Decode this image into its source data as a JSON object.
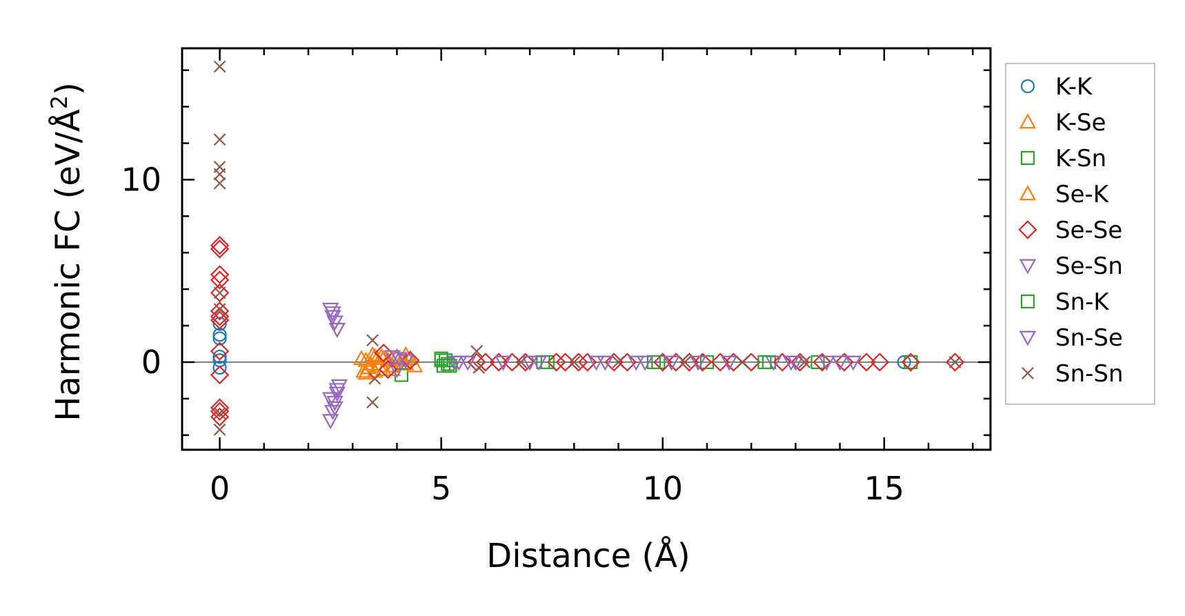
{
  "chart_data": {
    "type": "scatter",
    "title": "",
    "xlabel": "Distance (Å)",
    "ylabel_main": "Harmonic FC (eV/Å",
    "ylabel_sup": "2",
    "ylabel_close": ")",
    "xlim": [
      -0.85,
      17.4
    ],
    "ylim": [
      -4.8,
      17.2
    ],
    "xticks": [
      0,
      5,
      10,
      15
    ],
    "xtick_labels": [
      "0",
      "5",
      "10",
      "15"
    ],
    "yticks": [
      0,
      10
    ],
    "ytick_labels": [
      "0",
      "10"
    ],
    "x_minor_step": 1,
    "y_minor_step": 2,
    "zero_line": true,
    "grid": false,
    "legend_position": "outside-right",
    "series": [
      {
        "name": "K-K",
        "marker": "circle",
        "color": "#1f77b4",
        "points": [
          [
            0,
            2.1
          ],
          [
            0,
            1.5
          ],
          [
            0,
            1.3
          ],
          [
            0,
            0.3
          ],
          [
            0,
            0.1
          ],
          [
            0,
            -0.3
          ],
          [
            15.45,
            0
          ]
        ]
      },
      {
        "name": "K-Se",
        "marker": "triangle-up",
        "color": "#ff7f0e",
        "points": [
          [
            3.2,
            0.2
          ],
          [
            3.25,
            -0.5
          ],
          [
            3.3,
            0.1
          ],
          [
            3.35,
            -0.3
          ],
          [
            3.4,
            -0.1
          ],
          [
            3.45,
            0.4
          ],
          [
            3.5,
            -0.5
          ],
          [
            3.55,
            0.2
          ],
          [
            3.6,
            -0.2
          ],
          [
            3.65,
            0.3
          ],
          [
            3.7,
            -0.4
          ],
          [
            3.8,
            0.1
          ],
          [
            3.9,
            -0.2
          ],
          [
            4.0,
            0.3
          ],
          [
            4.1,
            0.1
          ],
          [
            4.2,
            -0.1
          ],
          [
            4.3,
            0.2
          ]
        ]
      },
      {
        "name": "K-Sn",
        "marker": "square",
        "color": "#2ca02c",
        "points": [
          [
            4.1,
            -0.7
          ],
          [
            5.0,
            0.2
          ],
          [
            5.05,
            -0.2
          ],
          [
            5.1,
            0.1
          ],
          [
            5.15,
            -0.1
          ],
          [
            7.4,
            0
          ],
          [
            9.9,
            0
          ],
          [
            11.0,
            0
          ],
          [
            12.4,
            0
          ],
          [
            13.5,
            0
          ],
          [
            15.6,
            0
          ]
        ]
      },
      {
        "name": "Se-K",
        "marker": "triangle-up",
        "color": "#ff7f0e",
        "points": [
          [
            3.3,
            -0.6
          ],
          [
            3.5,
            0.3
          ],
          [
            3.7,
            0.2
          ],
          [
            3.9,
            -0.4
          ],
          [
            4.2,
            0.4
          ],
          [
            4.4,
            -0.2
          ]
        ]
      },
      {
        "name": "Se-Se",
        "marker": "diamond",
        "color": "#d62728",
        "points": [
          [
            0,
            6.4
          ],
          [
            0,
            6.2
          ],
          [
            0,
            4.8
          ],
          [
            0,
            4.5
          ],
          [
            0,
            3.8
          ],
          [
            0,
            2.8
          ],
          [
            0,
            2.5
          ],
          [
            0,
            2.3
          ],
          [
            0,
            0.6
          ],
          [
            0,
            -0.7
          ],
          [
            0,
            -2.5
          ],
          [
            0,
            -2.7
          ],
          [
            0,
            -3.0
          ],
          [
            3.7,
            0.5
          ],
          [
            3.8,
            -0.4
          ],
          [
            4.3,
            0.1
          ],
          [
            5.8,
            0
          ],
          [
            6.0,
            0
          ],
          [
            6.3,
            0
          ],
          [
            6.6,
            0
          ],
          [
            6.9,
            0
          ],
          [
            7.6,
            0
          ],
          [
            7.8,
            0
          ],
          [
            8.1,
            0
          ],
          [
            8.3,
            0
          ],
          [
            8.9,
            0
          ],
          [
            9.2,
            0
          ],
          [
            10.0,
            0
          ],
          [
            10.3,
            0
          ],
          [
            10.6,
            0
          ],
          [
            10.9,
            0
          ],
          [
            11.3,
            0
          ],
          [
            11.6,
            0
          ],
          [
            12.0,
            0
          ],
          [
            12.7,
            0
          ],
          [
            13.1,
            0
          ],
          [
            13.6,
            0
          ],
          [
            14.1,
            0
          ],
          [
            14.6,
            0
          ],
          [
            14.9,
            0
          ],
          [
            15.6,
            0
          ],
          [
            16.6,
            0
          ]
        ]
      },
      {
        "name": "Se-Sn",
        "marker": "triangle-down",
        "color": "#9467bd",
        "points": [
          [
            2.5,
            2.9
          ],
          [
            2.55,
            2.5
          ],
          [
            2.6,
            2.2
          ],
          [
            2.65,
            1.8
          ],
          [
            2.5,
            -3.2
          ],
          [
            2.55,
            -2.7
          ],
          [
            2.6,
            -2.2
          ],
          [
            2.65,
            -1.7
          ],
          [
            2.7,
            -1.3
          ],
          [
            3.9,
            0.3
          ],
          [
            4.0,
            -0.4
          ],
          [
            4.2,
            0.1
          ],
          [
            5.3,
            0
          ],
          [
            5.6,
            0
          ],
          [
            6.4,
            0
          ],
          [
            7.0,
            0
          ],
          [
            8.7,
            0
          ],
          [
            9.4,
            0
          ],
          [
            10.2,
            0
          ],
          [
            10.8,
            0
          ],
          [
            11.5,
            0
          ],
          [
            12.5,
            0
          ],
          [
            13.0,
            0
          ],
          [
            13.7,
            0
          ],
          [
            14.3,
            0
          ]
        ]
      },
      {
        "name": "Sn-K",
        "marker": "square",
        "color": "#2ca02c",
        "points": [
          [
            5.0,
            0.1
          ],
          [
            5.2,
            -0.2
          ],
          [
            7.3,
            0
          ],
          [
            9.8,
            0
          ],
          [
            12.3,
            0
          ]
        ]
      },
      {
        "name": "Sn-Se",
        "marker": "triangle-down",
        "color": "#9467bd",
        "points": [
          [
            2.5,
            -2.0
          ],
          [
            2.55,
            2.7
          ],
          [
            2.6,
            -2.5
          ],
          [
            2.65,
            -1.5
          ],
          [
            4.05,
            0.2
          ],
          [
            5.4,
            0
          ],
          [
            7.2,
            0
          ],
          [
            8.5,
            0
          ],
          [
            9.6,
            0
          ],
          [
            12.9,
            0
          ],
          [
            14.0,
            0
          ]
        ]
      },
      {
        "name": "Sn-Sn",
        "marker": "x",
        "color": "#8c564b",
        "points": [
          [
            0,
            16.2
          ],
          [
            0,
            12.2
          ],
          [
            0,
            10.7
          ],
          [
            0,
            10.3
          ],
          [
            0,
            9.8
          ],
          [
            0,
            3.8
          ],
          [
            0,
            2.9
          ],
          [
            0,
            -2.8
          ],
          [
            0,
            -3.7
          ],
          [
            3.45,
            1.2
          ],
          [
            3.5,
            -0.9
          ],
          [
            3.45,
            -2.2
          ],
          [
            5.8,
            0.6
          ],
          [
            5.85,
            -0.3
          ],
          [
            6.8,
            0
          ],
          [
            8.0,
            0
          ],
          [
            9.0,
            0
          ],
          [
            10.5,
            0
          ],
          [
            11.8,
            0
          ],
          [
            13.2,
            0
          ],
          [
            16.6,
            0
          ]
        ]
      }
    ]
  }
}
